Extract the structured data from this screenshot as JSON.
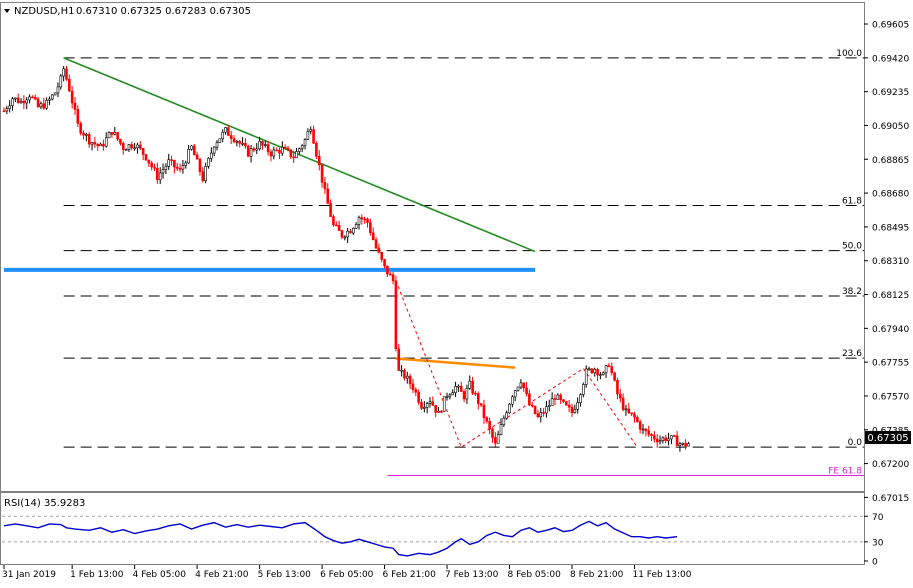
{
  "header": {
    "symbol": "NZDUSD,H1",
    "ohlc": "0.67310 0.67325 0.67283 0.67305"
  },
  "rsi_panel": {
    "label": "RSI(14) 35.9283",
    "levels": [
      "70",
      "30",
      "0"
    ]
  },
  "colors": {
    "up_candle": "#000000",
    "down_candle": "#ff0000",
    "trendline": "#228b22",
    "support": "#1e90ff",
    "resistance": "#ff8c00",
    "fib": "#000000",
    "fe": "#e020e0",
    "pattern": "#ff0000",
    "rsi": "#0000cc",
    "current_price_bg": "#000000"
  },
  "chart_data": [
    {
      "type": "candlestick",
      "symbol": "NZDUSD",
      "timeframe": "H1",
      "ylim": [
        0.6705,
        0.6972
      ],
      "y_ticks": [
        "0.69605",
        "0.69420",
        "0.69235",
        "0.69050",
        "0.68865",
        "0.68680",
        "0.68495",
        "0.68310",
        "0.68125",
        "0.67940",
        "0.67755",
        "0.67570",
        "0.67385",
        "0.67200",
        "0.67015"
      ],
      "x_ticks": [
        "31 Jan 2019",
        "1 Feb 13:00",
        "4 Feb 05:00",
        "4 Feb 21:00",
        "5 Feb 13:00",
        "6 Feb 05:00",
        "6 Feb 21:00",
        "7 Feb 13:00",
        "8 Feb 05:00",
        "8 Feb 21:00",
        "11 Feb 13:00"
      ],
      "price_path": [
        [
          0,
          0.6913
        ],
        [
          3,
          0.692
        ],
        [
          6,
          0.6918
        ],
        [
          9,
          0.6922
        ],
        [
          12,
          0.6915
        ],
        [
          15,
          0.6917
        ],
        [
          18,
          0.6923
        ],
        [
          20,
          0.693
        ],
        [
          21,
          0.6936
        ],
        [
          23,
          0.6925
        ],
        [
          26,
          0.6905
        ],
        [
          30,
          0.6897
        ],
        [
          34,
          0.6893
        ],
        [
          38,
          0.6902
        ],
        [
          42,
          0.6893
        ],
        [
          46,
          0.6895
        ],
        [
          50,
          0.6888
        ],
        [
          54,
          0.6877
        ],
        [
          58,
          0.6885
        ],
        [
          62,
          0.688
        ],
        [
          66,
          0.6893
        ],
        [
          70,
          0.6876
        ],
        [
          74,
          0.6895
        ],
        [
          78,
          0.6902
        ],
        [
          82,
          0.6897
        ],
        [
          86,
          0.689
        ],
        [
          90,
          0.6895
        ],
        [
          94,
          0.689
        ],
        [
          98,
          0.6892
        ],
        [
          102,
          0.6888
        ],
        [
          106,
          0.6897
        ],
        [
          108,
          0.6905
        ],
        [
          110,
          0.689
        ],
        [
          113,
          0.6868
        ],
        [
          116,
          0.685
        ],
        [
          119,
          0.6845
        ],
        [
          122,
          0.6848
        ],
        [
          125,
          0.6855
        ],
        [
          128,
          0.6852
        ],
        [
          131,
          0.6838
        ],
        [
          134,
          0.6827
        ],
        [
          137,
          0.682
        ],
        [
          138,
          0.6785
        ],
        [
          139,
          0.677
        ],
        [
          141,
          0.6768
        ],
        [
          144,
          0.6762
        ],
        [
          147,
          0.6752
        ],
        [
          150,
          0.6755
        ],
        [
          153,
          0.6747
        ],
        [
          156,
          0.6758
        ],
        [
          159,
          0.6762
        ],
        [
          162,
          0.6757
        ],
        [
          164,
          0.6763
        ],
        [
          167,
          0.6754
        ],
        [
          170,
          0.6742
        ],
        [
          173,
          0.673
        ],
        [
          176,
          0.6745
        ],
        [
          179,
          0.6758
        ],
        [
          182,
          0.6766
        ],
        [
          185,
          0.6752
        ],
        [
          188,
          0.6745
        ],
        [
          191,
          0.675
        ],
        [
          194,
          0.6757
        ],
        [
          197,
          0.6752
        ],
        [
          200,
          0.6748
        ],
        [
          202,
          0.6755
        ],
        [
          205,
          0.677
        ],
        [
          208,
          0.6772
        ],
        [
          211,
          0.6768
        ],
        [
          213,
          0.6775
        ],
        [
          216,
          0.6758
        ],
        [
          219,
          0.6748
        ],
        [
          222,
          0.6745
        ],
        [
          225,
          0.6738
        ],
        [
          228,
          0.6735
        ],
        [
          231,
          0.6733
        ],
        [
          233,
          0.6734
        ],
        [
          236,
          0.6733
        ],
        [
          239,
          0.673
        ],
        [
          241,
          0.6731
        ]
      ],
      "fibonacci": {
        "levels": [
          {
            "label": "100.0",
            "value": 0.6942
          },
          {
            "label": "61.8",
            "value": 0.68612
          },
          {
            "label": "50.0",
            "value": 0.68365
          },
          {
            "label": "38.2",
            "value": 0.68117
          },
          {
            "label": "23.6",
            "value": 0.67777
          },
          {
            "label": "0.0",
            "value": 0.6729
          }
        ]
      },
      "fe_level": {
        "label": "FE 61.8",
        "value": 0.67135
      },
      "current_price": "0.67305",
      "trendline": {
        "from": [
          21,
          0.6942
        ],
        "to": [
          187,
          0.6836
        ]
      },
      "support": {
        "from": [
          0,
          0.6826
        ],
        "to": [
          187,
          0.6826
        ]
      },
      "resistance": {
        "from": [
          138,
          0.67775
        ],
        "to": [
          180,
          0.67725
        ]
      },
      "pattern": [
        [
          138,
          0.682
        ],
        [
          161,
          0.6729
        ],
        [
          204,
          0.6772
        ],
        [
          223,
          0.6729
        ]
      ]
    },
    {
      "type": "line",
      "name": "RSI(14)",
      "ylim": [
        0,
        100
      ],
      "levels": [
        70,
        30
      ],
      "y_ticks": [
        "70",
        "30",
        "0"
      ],
      "values": [
        [
          0,
          55
        ],
        [
          4,
          58
        ],
        [
          8,
          55
        ],
        [
          12,
          52
        ],
        [
          16,
          58
        ],
        [
          20,
          57
        ],
        [
          22,
          52
        ],
        [
          25,
          50
        ],
        [
          30,
          48
        ],
        [
          34,
          52
        ],
        [
          38,
          45
        ],
        [
          42,
          49
        ],
        [
          46,
          43
        ],
        [
          50,
          47
        ],
        [
          54,
          50
        ],
        [
          58,
          55
        ],
        [
          62,
          58
        ],
        [
          66,
          50
        ],
        [
          70,
          56
        ],
        [
          74,
          60
        ],
        [
          78,
          53
        ],
        [
          82,
          57
        ],
        [
          86,
          53
        ],
        [
          90,
          56
        ],
        [
          94,
          54
        ],
        [
          98,
          52
        ],
        [
          102,
          58
        ],
        [
          106,
          60
        ],
        [
          110,
          48
        ],
        [
          113,
          38
        ],
        [
          116,
          32
        ],
        [
          119,
          28
        ],
        [
          122,
          30
        ],
        [
          125,
          34
        ],
        [
          128,
          30
        ],
        [
          131,
          26
        ],
        [
          134,
          22
        ],
        [
          137,
          20
        ],
        [
          139,
          10
        ],
        [
          142,
          8
        ],
        [
          146,
          12
        ],
        [
          150,
          10
        ],
        [
          153,
          14
        ],
        [
          156,
          20
        ],
        [
          159,
          30
        ],
        [
          161,
          35
        ],
        [
          164,
          26
        ],
        [
          167,
          30
        ],
        [
          170,
          40
        ],
        [
          173,
          45
        ],
        [
          176,
          40
        ],
        [
          179,
          38
        ],
        [
          182,
          48
        ],
        [
          185,
          52
        ],
        [
          188,
          45
        ],
        [
          191,
          48
        ],
        [
          194,
          52
        ],
        [
          197,
          46
        ],
        [
          200,
          48
        ],
        [
          203,
          56
        ],
        [
          206,
          62
        ],
        [
          209,
          55
        ],
        [
          212,
          60
        ],
        [
          215,
          50
        ],
        [
          218,
          44
        ],
        [
          221,
          38
        ],
        [
          224,
          38
        ],
        [
          227,
          36
        ],
        [
          230,
          38
        ],
        [
          233,
          36
        ],
        [
          237,
          38
        ]
      ]
    }
  ]
}
